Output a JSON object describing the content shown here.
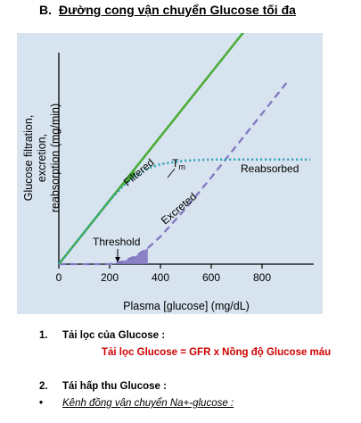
{
  "heading": {
    "section": "B.",
    "title": "Đường cong vận chuyển Glucose tối đa"
  },
  "chart_data": {
    "type": "line",
    "xlabel": "Plasma [glucose] (mg/dL)",
    "ylabel": "Glucose filtration, excretion, reabsorption (mg/min)",
    "xticks": [
      "0",
      "200",
      "400",
      "600",
      "800"
    ],
    "xlim": [
      0,
      1000
    ],
    "ylim": [
      0,
      1000
    ],
    "series": [
      {
        "name": "Filtered",
        "x": [
          0,
          800
        ],
        "y": [
          0,
          1000
        ],
        "color": "#4cad3a",
        "style": "solid"
      },
      {
        "name": "Reabsorbed",
        "x": [
          0,
          200,
          250,
          300,
          350,
          400,
          500,
          600,
          700,
          800,
          990
        ],
        "y": [
          0,
          250,
          303,
          345,
          374,
          392,
          406,
          410,
          410,
          410,
          410
        ],
        "color": "#2aa3b3",
        "style": "dotted"
      },
      {
        "name": "Excreted",
        "x": [
          0,
          200,
          250,
          300,
          350,
          400,
          500,
          600,
          700,
          800,
          900
        ],
        "y": [
          0,
          0,
          10,
          30,
          63,
          108,
          219,
          340,
          465,
          590,
          715
        ],
        "color": "#8377c0",
        "style": "dashed"
      }
    ],
    "annotations": {
      "threshold": "Threshold",
      "tm": "T",
      "tm_sub": "m"
    }
  },
  "items": [
    {
      "num": "1.",
      "label": "Tải lọc của Glucose :"
    },
    {
      "num": "2.",
      "label": "Tái hấp thu Glucose :"
    }
  ],
  "formula": "Tải lọc Glucose = GFR x Nồng độ Glucose máu",
  "bullet": {
    "symbol": "•",
    "text": "Kênh đồng vận chuyển Na+-glucose :"
  },
  "colors": {
    "filtered": "#4cad3a",
    "reabsorbed": "#2aa3b3",
    "excreted": "#8377c0",
    "formula": "#d00000",
    "panel": "#d7e3ef"
  }
}
